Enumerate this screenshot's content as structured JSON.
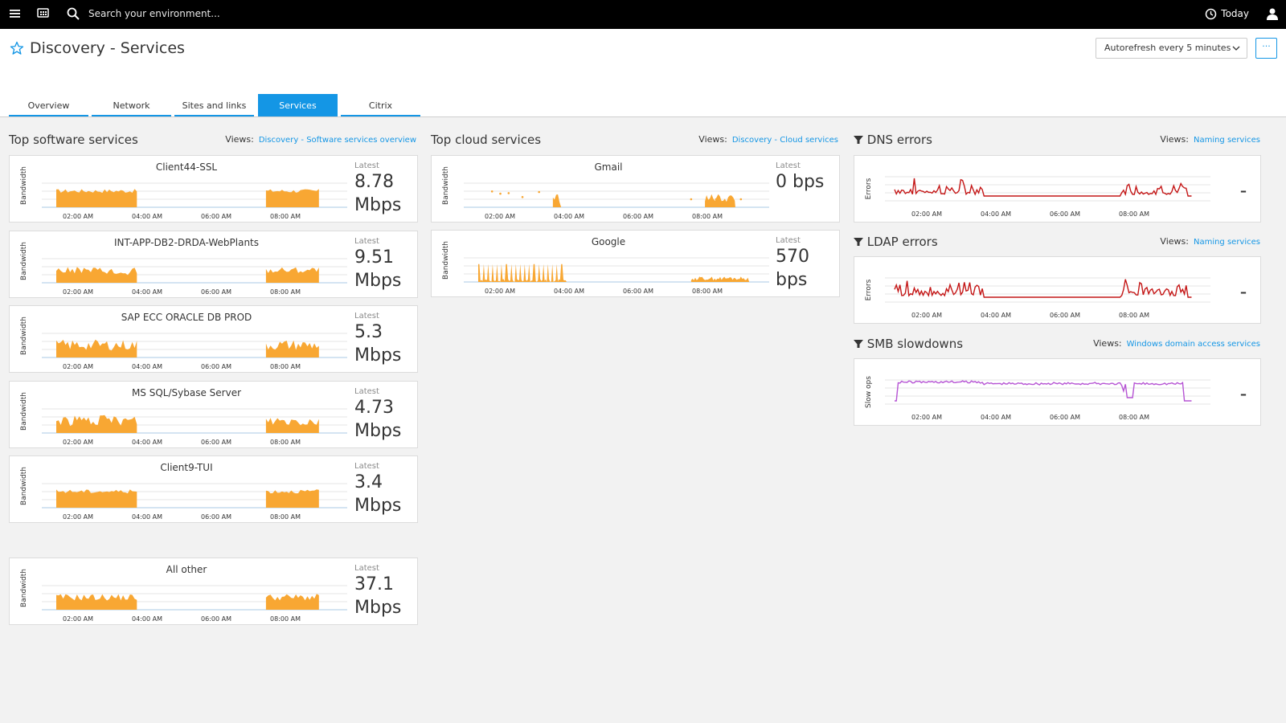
{
  "topbar": {
    "search_placeholder": "Search your environment...",
    "timeframe": "Today"
  },
  "page": {
    "title": "Discovery - Services",
    "autorefresh": "Autorefresh every 5 minutes",
    "more": "···"
  },
  "tabs": [
    {
      "label": "Overview"
    },
    {
      "label": "Network"
    },
    {
      "label": "Sites and links"
    },
    {
      "label": "Services",
      "active": true
    },
    {
      "label": "Citrix"
    }
  ],
  "time_ticks": [
    "02:00 AM",
    "04:00 AM",
    "06:00 AM",
    "08:00 AM"
  ],
  "latest_label": "Latest",
  "colors": {
    "accent": "#1496e5",
    "bandwidth": "#f8a733",
    "errors": "#c41616",
    "slowdowns": "#b654d4"
  },
  "sections": {
    "software": {
      "title": "Top software services",
      "views_label": "Views:",
      "views_link": "Discovery - Software services overview"
    },
    "cloud": {
      "title": "Top cloud services",
      "views_label": "Views:",
      "views_link": "Discovery - Cloud services"
    },
    "dns": {
      "title": "DNS errors",
      "views_label": "Views:",
      "views_link": "Naming services",
      "ylabel": "Errors",
      "latest": "–"
    },
    "ldap": {
      "title": "LDAP errors",
      "views_label": "Views:",
      "views_link": "Naming services",
      "ylabel": "Errors",
      "latest": "–"
    },
    "smb": {
      "title": "SMB slowdowns",
      "views_label": "Views:",
      "views_link": "Windows domain access services",
      "ylabel": "Slow ops",
      "latest": "–"
    }
  },
  "software_services": [
    {
      "name": "Client44-SSL",
      "ylabel": "Bandwidth",
      "latest_num": "8.78",
      "latest_unit": "Mbps"
    },
    {
      "name": "INT-APP-DB2-DRDA-WebPlants",
      "ylabel": "Bandwidth",
      "latest_num": "9.51",
      "latest_unit": "Mbps"
    },
    {
      "name": "SAP ECC ORACLE DB PROD",
      "ylabel": "Bandwidth",
      "latest_num": "5.3",
      "latest_unit": "Mbps"
    },
    {
      "name": "MS SQL/Sybase Server",
      "ylabel": "Bandwidth",
      "latest_num": "4.73",
      "latest_unit": "Mbps"
    },
    {
      "name": "Client9-TUI",
      "ylabel": "Bandwidth",
      "latest_num": "3.4",
      "latest_unit": "Mbps"
    }
  ],
  "all_other": {
    "name": "All other",
    "ylabel": "Bandwidth",
    "latest_num": "37.1",
    "latest_unit": "Mbps"
  },
  "cloud_services": [
    {
      "name": "Gmail",
      "ylabel": "Bandwidth",
      "latest_num": "0 bps",
      "latest_unit": ""
    },
    {
      "name": "Google",
      "ylabel": "Bandwidth",
      "latest_num": "570",
      "latest_unit": "bps"
    }
  ]
}
